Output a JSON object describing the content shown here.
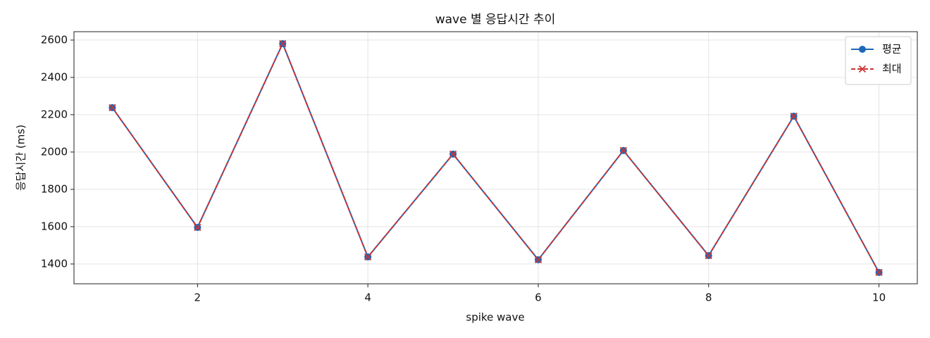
{
  "chart_data": {
    "type": "line",
    "title": "wave 별 응답시간 추이",
    "xlabel": "spike wave",
    "ylabel": "응답시간 (ms)",
    "x": [
      1,
      2,
      3,
      4,
      5,
      6,
      7,
      8,
      9,
      10
    ],
    "series": [
      {
        "name": "평균",
        "color": "#1f68b8",
        "marker": "o",
        "linestyle": "solid",
        "values": [
          2238,
          1596,
          2581,
          1438,
          1989,
          1423,
          2008,
          1445,
          2192,
          1355
        ]
      },
      {
        "name": "최대",
        "color": "#cc3333",
        "marker": "x",
        "linestyle": "dashed",
        "values": [
          2238,
          1596,
          2581,
          1438,
          1989,
          1423,
          2008,
          1445,
          2192,
          1355
        ]
      }
    ],
    "xlim": [
      0.55,
      10.45
    ],
    "ylim": [
      1294,
      2645
    ],
    "xticks": [
      2,
      4,
      6,
      8,
      10
    ],
    "yticks": [
      1400,
      1600,
      1800,
      2000,
      2200,
      2400,
      2600
    ],
    "grid": true,
    "legend": "upper right"
  }
}
